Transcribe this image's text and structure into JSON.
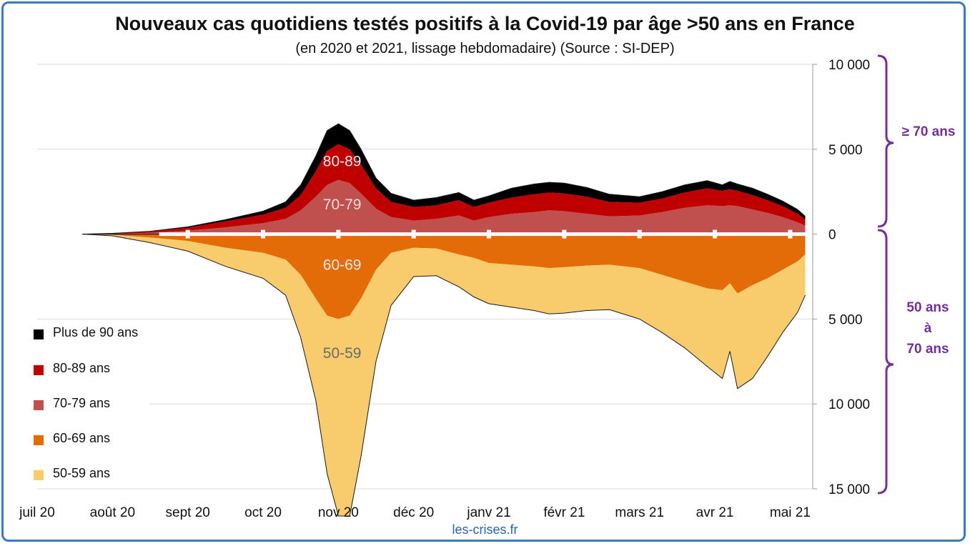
{
  "title": "Nouveaux cas quotidiens testés positifs à la Covid-19 par âge >50 ans en France",
  "subtitle": "(en 2020 et 2021, lissage hebdomadaire) (Source : SI-DEP)",
  "source": "les-crises.fr",
  "brackets": {
    "upper_label": "≥ 70 ans",
    "lower_label_lines": [
      "50 ans",
      "à",
      "70 ans"
    ],
    "color": "#7030a0"
  },
  "chart_data": {
    "type": "area",
    "layout": "diverging-stacked",
    "x_unit": "months since juil 20",
    "x_ticks": [
      "juil 20",
      "août 20",
      "sept 20",
      "oct 20",
      "nov 20",
      "déc 20",
      "janv 21",
      "févr 21",
      "mars 21",
      "avr 21",
      "mai 21"
    ],
    "xlim": [
      0,
      10.3
    ],
    "y_ticks": [
      {
        "value": 10000,
        "label": "10 000"
      },
      {
        "value": 5000,
        "label": "5 000"
      },
      {
        "value": 0,
        "label": "0"
      },
      {
        "value": -5000,
        "label": "5 000"
      },
      {
        "value": -10000,
        "label": "10 000"
      },
      {
        "value": -15000,
        "label": "15 000"
      }
    ],
    "ylim": [
      -15000,
      10000
    ],
    "grid": "horizontal",
    "legend_position": "left-bottom",
    "x": [
      0.6,
      1.0,
      1.5,
      2.0,
      2.5,
      3.0,
      3.3,
      3.5,
      3.7,
      3.85,
      4.0,
      4.15,
      4.3,
      4.5,
      4.7,
      5.0,
      5.3,
      5.6,
      5.8,
      6.0,
      6.3,
      6.6,
      6.8,
      7.0,
      7.3,
      7.6,
      8.0,
      8.3,
      8.6,
      8.9,
      9.1,
      9.2,
      9.3,
      9.5,
      9.7,
      9.9,
      10.1,
      10.2
    ],
    "above_zero": [
      {
        "name": "70-79 ans",
        "label": "70-79",
        "color": "#c0504d",
        "values": [
          0,
          20,
          80,
          200,
          400,
          650,
          900,
          1400,
          2200,
          2900,
          3200,
          3000,
          2400,
          1500,
          1000,
          800,
          900,
          1100,
          800,
          1000,
          1200,
          1300,
          1400,
          1350,
          1200,
          1050,
          1100,
          1300,
          1550,
          1700,
          1650,
          1700,
          1650,
          1450,
          1250,
          1000,
          700,
          500
        ]
      },
      {
        "name": "80-89 ans",
        "label": "80-89",
        "color": "#c00000",
        "values": [
          0,
          20,
          70,
          180,
          350,
          500,
          650,
          900,
          1500,
          2000,
          2100,
          2000,
          1700,
          1200,
          900,
          800,
          800,
          900,
          800,
          850,
          950,
          1050,
          1050,
          1050,
          1000,
          850,
          750,
          800,
          900,
          1000,
          900,
          950,
          900,
          850,
          750,
          650,
          500,
          350
        ]
      },
      {
        "name": "Plus de 90 ans",
        "label": "",
        "color": "#000000",
        "values": [
          0,
          5,
          20,
          50,
          100,
          200,
          350,
          600,
          900,
          1200,
          1200,
          1100,
          900,
          600,
          500,
          400,
          450,
          450,
          400,
          400,
          550,
          600,
          600,
          600,
          550,
          450,
          350,
          400,
          450,
          450,
          350,
          450,
          400,
          400,
          350,
          300,
          250,
          200
        ]
      }
    ],
    "below_zero": [
      {
        "name": "60-69 ans",
        "label": "60-69",
        "color": "#e36c09",
        "values": [
          0,
          50,
          200,
          400,
          800,
          1100,
          1500,
          2400,
          3800,
          4800,
          5000,
          4800,
          3800,
          2100,
          1100,
          800,
          850,
          1200,
          1400,
          1700,
          1800,
          1900,
          2000,
          1950,
          1850,
          1800,
          2000,
          2400,
          2800,
          3200,
          3300,
          2900,
          3500,
          3000,
          2600,
          2100,
          1600,
          1200
        ]
      },
      {
        "name": "50-59 ans",
        "label": "50-59",
        "color": "#f8cb6c",
        "values": [
          0,
          50,
          300,
          600,
          1100,
          1500,
          2100,
          3700,
          6000,
          9300,
          11600,
          11800,
          9300,
          5400,
          3100,
          1700,
          1600,
          1900,
          2300,
          2400,
          2500,
          2600,
          2700,
          2700,
          2650,
          2650,
          3000,
          3400,
          3900,
          4600,
          5200,
          4000,
          5600,
          5500,
          4600,
          3700,
          3000,
          2400
        ]
      }
    ]
  },
  "legend": [
    {
      "name": "Plus de 90 ans",
      "color": "#000000"
    },
    {
      "name": "80-89 ans",
      "color": "#c00000"
    },
    {
      "name": "70-79 ans",
      "color": "#c0504d"
    },
    {
      "name": "60-69 ans",
      "color": "#e36c09"
    },
    {
      "name": "50-59 ans",
      "color": "#f8cb6c"
    }
  ]
}
